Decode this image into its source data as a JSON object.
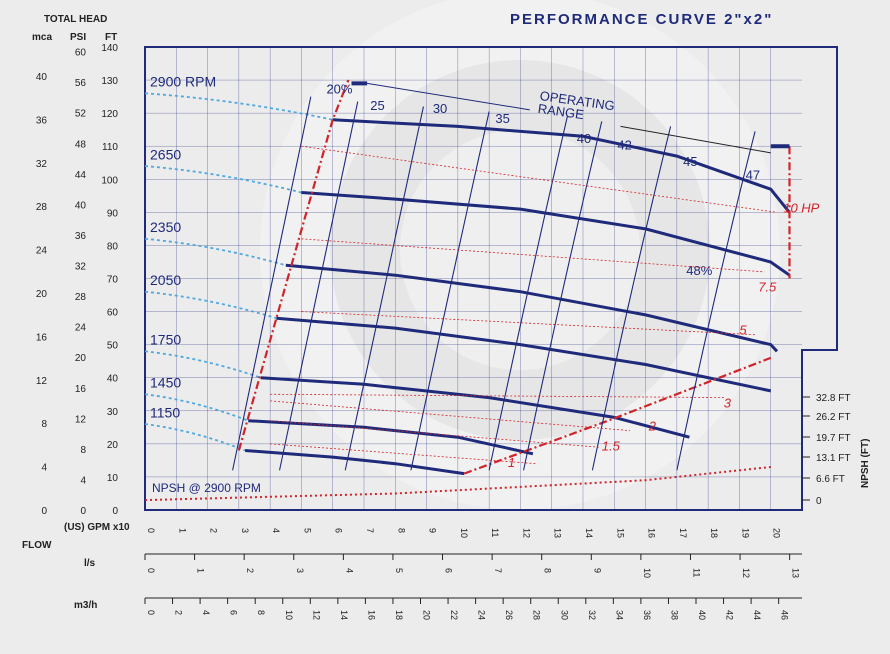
{
  "title": "PERFORMANCE CURVE  2\"x2\"",
  "colors": {
    "navy": "#1f2a7a",
    "red": "#d0242a",
    "blue_dashed": "#4fa8e0",
    "grid": "#1f2a7a"
  },
  "header": {
    "total_head": "TOTAL HEAD",
    "mca": "mca",
    "psi": "PSI",
    "ft": "FT"
  },
  "flow_labels": {
    "flow": "FLOW",
    "gpm": "(US) GPM x10",
    "ls": "l/s",
    "m3h": "m3/h"
  },
  "npsh_label": "NPSH (FT)",
  "annotations": {
    "operating_range": "OPERATING\nRANGE",
    "npsh_curve": "NPSH @ 2900 RPM"
  },
  "chart_data": {
    "type": "line",
    "x_unit": "(US) GPM x10",
    "xlim": [
      0,
      21
    ],
    "ylim": [
      0,
      140
    ],
    "axes": {
      "ft_ticks": [
        0,
        10,
        20,
        30,
        40,
        50,
        60,
        70,
        80,
        90,
        100,
        110,
        120,
        130,
        140
      ],
      "psi_ticks": [
        0,
        4,
        8,
        12,
        16,
        20,
        24,
        28,
        32,
        36,
        40,
        44,
        48,
        52,
        56,
        60
      ],
      "mca_ticks": [
        0,
        4,
        8,
        12,
        16,
        20,
        24,
        28,
        32,
        36,
        40
      ],
      "gpm_ticks": [
        0,
        1,
        2,
        3,
        4,
        5,
        6,
        7,
        8,
        9,
        10,
        11,
        12,
        13,
        14,
        15,
        16,
        17,
        18,
        19,
        20
      ],
      "ls_ticks": [
        0,
        1,
        2,
        3,
        4,
        5,
        6,
        7,
        8,
        9,
        10,
        11,
        12,
        13
      ],
      "m3h_ticks": [
        0,
        2,
        4,
        6,
        8,
        10,
        12,
        14,
        16,
        18,
        20,
        22,
        24,
        26,
        28,
        30,
        32,
        34,
        36,
        38,
        40,
        42,
        44,
        46
      ],
      "npsh_ticks": [
        "32.8 FT",
        "26.2 FT",
        "19.7 FT",
        "13.1 FT",
        "6.6 FT",
        "0"
      ]
    },
    "series": [
      {
        "name": "2900 RPM",
        "points": [
          [
            6,
            118
          ],
          [
            10,
            116
          ],
          [
            14,
            113
          ],
          [
            17,
            107
          ],
          [
            20,
            97
          ],
          [
            20.6,
            90
          ]
        ]
      },
      {
        "name": "2650",
        "points": [
          [
            5,
            96
          ],
          [
            8,
            94
          ],
          [
            12,
            91
          ],
          [
            16,
            85
          ],
          [
            20,
            75
          ],
          [
            20.6,
            71
          ]
        ]
      },
      {
        "name": "2350",
        "points": [
          [
            4.5,
            74
          ],
          [
            8,
            71
          ],
          [
            12,
            66
          ],
          [
            16,
            59
          ],
          [
            20,
            50
          ],
          [
            20.2,
            48
          ]
        ]
      },
      {
        "name": "2050",
        "points": [
          [
            4.2,
            58
          ],
          [
            8,
            55
          ],
          [
            12,
            50
          ],
          [
            16,
            44
          ],
          [
            20,
            36
          ],
          [
            20,
            36
          ]
        ]
      },
      {
        "name": "1750",
        "points": [
          [
            3.7,
            40
          ],
          [
            7,
            38
          ],
          [
            11,
            34
          ],
          [
            15,
            28
          ],
          [
            17.4,
            22
          ]
        ]
      },
      {
        "name": "1450",
        "points": [
          [
            3.3,
            27
          ],
          [
            7,
            25
          ],
          [
            10,
            22
          ],
          [
            12.4,
            17
          ]
        ]
      },
      {
        "name": "1150",
        "points": [
          [
            3.2,
            18
          ],
          [
            6,
            16
          ],
          [
            8,
            14
          ],
          [
            10.2,
            11
          ]
        ]
      }
    ],
    "efficiency_labels": [
      "20%",
      "25",
      "30",
      "35",
      "40",
      "42",
      "45",
      "47",
      "48%"
    ],
    "power_labels": [
      "10 HP",
      "7.5",
      "5",
      "3",
      "2",
      "1.5",
      "1"
    ],
    "npsh_curve": {
      "points": [
        [
          0,
          3
        ],
        [
          4,
          4
        ],
        [
          8,
          5
        ],
        [
          12,
          7
        ],
        [
          16,
          9
        ],
        [
          20,
          13
        ]
      ]
    }
  }
}
